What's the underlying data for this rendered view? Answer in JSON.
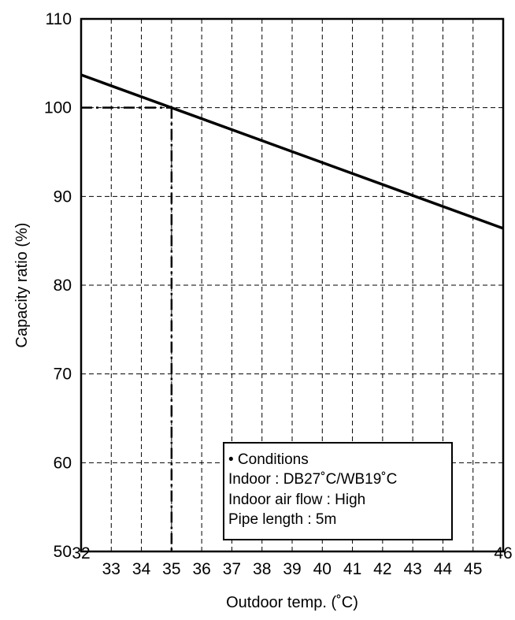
{
  "chart_data": {
    "type": "line",
    "xlabel": "Outdoor temp. (˚C)",
    "ylabel": "Capacity ratio (%)",
    "xlim": [
      32,
      46
    ],
    "ylim": [
      50,
      110
    ],
    "x_ticks": [
      32,
      33,
      34,
      35,
      36,
      37,
      38,
      39,
      40,
      41,
      42,
      43,
      44,
      45,
      46
    ],
    "y_ticks": [
      50,
      60,
      70,
      80,
      90,
      100,
      110
    ],
    "grid": true,
    "series": [
      {
        "x": [
          32,
          46
        ],
        "y": [
          103.7,
          86.4
        ]
      }
    ],
    "reference": {
      "x": 35,
      "y": 100,
      "style": "dash-dot"
    },
    "annotation": {
      "lines": [
        "• Conditions",
        "Indoor : DB27˚C/WB19˚C",
        "Indoor air flow : High",
        "Pipe length : 5m"
      ]
    }
  }
}
